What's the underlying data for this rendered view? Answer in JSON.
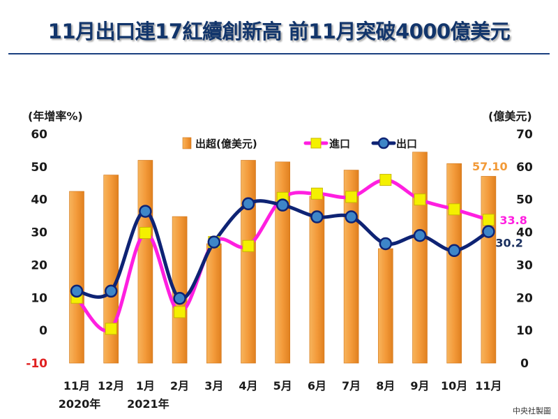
{
  "chart_data": {
    "type": "bar+line",
    "title": "11月出口連17紅續創新高 前11月突破4000億美元",
    "categories": [
      "11月",
      "12月",
      "1月",
      "2月",
      "3月",
      "4月",
      "5月",
      "6月",
      "7月",
      "8月",
      "9月",
      "10月",
      "11月"
    ],
    "year_labels": [
      {
        "label": "2020年",
        "category_index": 0
      },
      {
        "label": "2021年",
        "category_index": 2
      }
    ],
    "left_axis": {
      "label": "(年增率%)",
      "range": [
        -10,
        60
      ],
      "ticks": [
        "-10",
        "0",
        "10",
        "20",
        "30",
        "40",
        "50",
        "60"
      ]
    },
    "right_axis": {
      "label": "(億美元)",
      "range": [
        0,
        70
      ],
      "ticks": [
        "0",
        "10",
        "20",
        "30",
        "40",
        "50",
        "60",
        "70"
      ]
    },
    "legend": {
      "placement": "top",
      "items": [
        "出超(億美元)",
        "進口",
        "出口"
      ]
    },
    "series": [
      {
        "name": "出超(億美元)",
        "type": "bar",
        "axis": "right",
        "color": "#f29a38",
        "values": [
          52.5,
          57.5,
          62.0,
          44.8,
          36.5,
          62.0,
          61.5,
          51.0,
          59.0,
          35.0,
          64.5,
          61.0,
          57.1
        ]
      },
      {
        "name": "進口",
        "type": "line",
        "axis": "left",
        "color": "#ff1fe0",
        "marker_color": "#f4f000",
        "values": [
          10.0,
          0.5,
          29.8,
          5.6,
          27.0,
          25.8,
          40.5,
          41.8,
          40.8,
          46.0,
          40.0,
          37.0,
          33.8
        ]
      },
      {
        "name": "出口",
        "type": "line",
        "axis": "left",
        "color": "#0e2374",
        "marker_color": "#3e86c8",
        "values": [
          12.0,
          12.0,
          36.4,
          9.8,
          27.0,
          38.7,
          38.3,
          34.7,
          34.7,
          26.5,
          29.0,
          24.4,
          30.2
        ]
      }
    ],
    "annotations": [
      {
        "text": "57.10",
        "series": "出超(億美元)",
        "category_index": 12,
        "color": "#f29a38"
      },
      {
        "text": "33.8",
        "series": "進口",
        "category_index": 12,
        "color": "#ff1fe0"
      },
      {
        "text": "30.2",
        "series": "出口",
        "category_index": 12,
        "color": "#1a2f5e"
      }
    ],
    "grid": false
  },
  "footer": {
    "credit": "中央社製圖"
  },
  "colors": {
    "title": "#12356b",
    "negative_tick": "#e02020",
    "axis_text": "#1a1a1a"
  }
}
